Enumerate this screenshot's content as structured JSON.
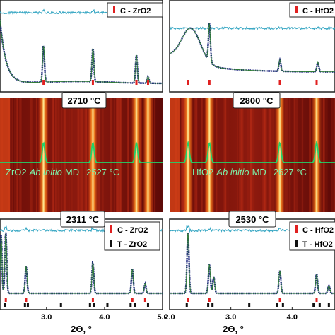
{
  "colors": {
    "data_blue": "#1a237e",
    "fit_green": "#2e7d32",
    "diff_cyan": "#3aa8c4",
    "cubic_tick": "#e02020",
    "tetra_tick": "#111111",
    "map_dark": "#5a0a08",
    "map_mid": "#b8321a",
    "map_bright": "#ffe680",
    "md_line": "#22d36a",
    "md_label": "#7cf0a8"
  },
  "chart_data": [
    {
      "id": "zro2_hot_xrd",
      "type": "line",
      "legend": [
        {
          "marker": "red-bar",
          "text": "C - ZrO2"
        }
      ],
      "cubic_ticks": [
        2.95,
        3.8,
        4.55,
        4.75
      ],
      "peaks": [
        {
          "x": 2.95,
          "h": 0.55
        },
        {
          "x": 3.8,
          "h": 0.5
        },
        {
          "x": 4.55,
          "h": 0.42
        },
        {
          "x": 4.75,
          "h": 0.1
        }
      ],
      "x_range": [
        2.2,
        5.0
      ]
    },
    {
      "id": "hfo2_hot_xrd",
      "type": "line",
      "legend": [
        {
          "marker": "red-bar",
          "text": "C - HfO2"
        }
      ],
      "cubic_ticks": [
        2.3,
        2.65,
        3.8,
        4.4
      ],
      "peaks": [
        {
          "x": 2.65,
          "h": 0.6
        },
        {
          "x": 3.8,
          "h": 0.18
        },
        {
          "x": 4.42,
          "h": 0.15
        }
      ],
      "x_range": [
        2.0,
        4.7
      ]
    },
    {
      "id": "zro2_map",
      "type": "heatmap",
      "temperature_label": "2710 °C",
      "md_label_material": "ZrO2",
      "md_label_method": "Ab initio",
      "md_label_suffix": "MD",
      "md_temperature": "2527 °C",
      "bright_columns": [
        2.95,
        3.8,
        4.55,
        4.75
      ],
      "md_peaks": [
        2.95,
        3.8,
        4.55
      ],
      "x_range": [
        2.2,
        5.0
      ]
    },
    {
      "id": "hfo2_map",
      "type": "heatmap",
      "temperature_label": "2800 °C",
      "md_label_material": "HfO2",
      "md_label_method": "Ab initio",
      "md_label_suffix": "MD",
      "md_temperature": "2627 °C",
      "bright_columns": [
        2.3,
        2.65,
        3.8,
        4.4
      ],
      "md_peaks": [
        2.3,
        2.65,
        3.8,
        4.4
      ],
      "x_range": [
        2.0,
        4.7
      ]
    },
    {
      "id": "zro2_cool_xrd",
      "type": "line",
      "temperature_label": "2311 °C",
      "legend": [
        {
          "marker": "red-bar",
          "text": "C - ZrO2"
        },
        {
          "marker": "black-bar",
          "text": "T - ZrO2"
        }
      ],
      "cubic_ticks": [
        2.3,
        2.65,
        3.8,
        4.48,
        4.7
      ],
      "tetra_ticks": [
        2.28,
        2.63,
        2.68,
        3.25,
        3.75,
        3.82,
        4.05,
        4.45,
        4.52,
        4.75
      ],
      "peaks": [
        {
          "x": 2.3,
          "h": 0.95
        },
        {
          "x": 2.65,
          "h": 0.42
        },
        {
          "x": 3.8,
          "h": 0.48
        },
        {
          "x": 4.48,
          "h": 0.38
        },
        {
          "x": 4.7,
          "h": 0.15
        }
      ],
      "x_range": [
        2.2,
        5.0
      ],
      "xticks": [
        "3.0",
        "4.0",
        "5.0"
      ],
      "xtick_values": [
        3.0,
        4.0,
        5.0
      ],
      "xlabel": "2Θ, °"
    },
    {
      "id": "hfo2_cool_xrd",
      "type": "line",
      "temperature_label": "2530 °C",
      "legend": [
        {
          "marker": "red-bar",
          "text": "C - HfO2"
        },
        {
          "marker": "black-bar",
          "text": "T - HfO2"
        }
      ],
      "cubic_ticks": [
        2.3,
        2.65,
        3.8,
        4.4
      ],
      "tetra_ticks": [
        2.28,
        2.63,
        2.7,
        3.3,
        3.75,
        3.85,
        4.35,
        4.45,
        4.6
      ],
      "peaks": [
        {
          "x": 2.3,
          "h": 0.95
        },
        {
          "x": 2.65,
          "h": 0.45
        },
        {
          "x": 2.72,
          "h": 0.25
        },
        {
          "x": 3.8,
          "h": 0.35
        },
        {
          "x": 4.4,
          "h": 0.3
        },
        {
          "x": 4.6,
          "h": 0.12
        }
      ],
      "x_range": [
        2.0,
        4.7
      ],
      "xticks": [
        "2.0",
        "3.0",
        "4.0"
      ],
      "xtick_values": [
        2.0,
        3.0,
        4.0
      ],
      "xlabel": "2Θ, °"
    }
  ]
}
